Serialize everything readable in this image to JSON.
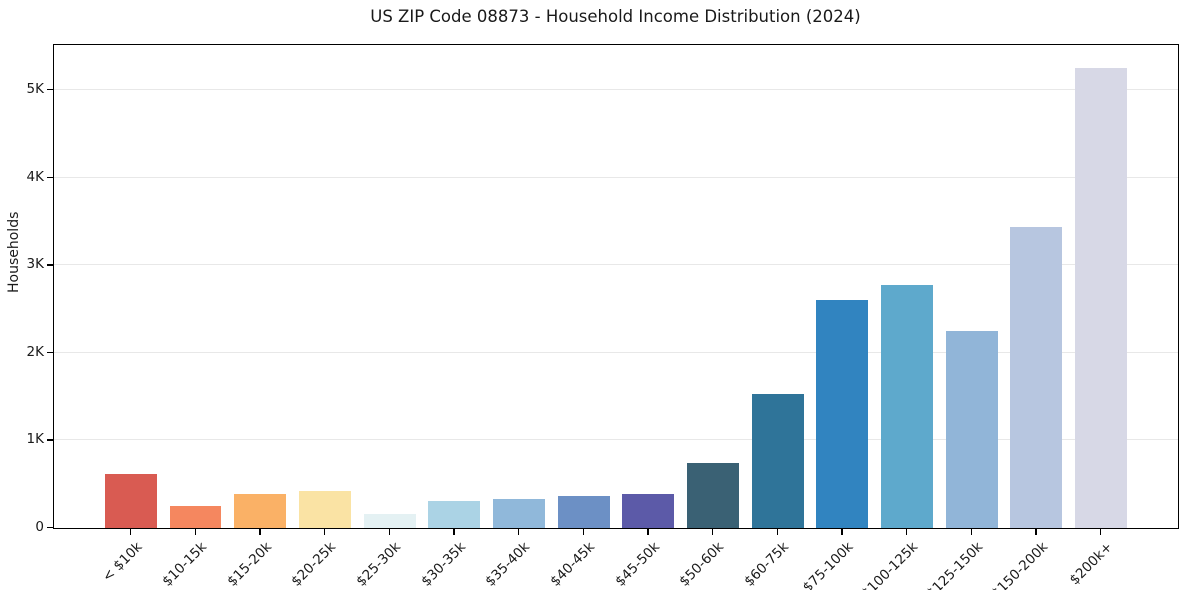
{
  "chart_data": {
    "type": "bar",
    "title": "US ZIP Code 08873 - Household Income Distribution (2024)",
    "xlabel": "",
    "ylabel": "Households",
    "categories": [
      "< $10k",
      "$10-15k",
      "$15-20k",
      "$20-25k",
      "$25-30k",
      "$30-35k",
      "$35-40k",
      "$40-45k",
      "$45-50k",
      "$50-60k",
      "$60-75k",
      "$75-100k",
      "$100-125k",
      "$125-150k",
      "$150-200k",
      "$200k+"
    ],
    "values": [
      620,
      250,
      385,
      425,
      165,
      310,
      335,
      365,
      390,
      745,
      1525,
      2600,
      2770,
      2255,
      3440,
      5250
    ],
    "bar_colors": [
      "#d95b52",
      "#f5875f",
      "#fab166",
      "#fae3a4",
      "#e4f1f3",
      "#abd3e5",
      "#90b8da",
      "#6c90c5",
      "#5c5aa8",
      "#3a6174",
      "#2f7499",
      "#3184c0",
      "#5ea9cc",
      "#91b5d8",
      "#b7c6e0",
      "#d7d8e6"
    ],
    "ylim": [
      0,
      5515
    ],
    "yticks": [
      {
        "value": 0,
        "label": "0"
      },
      {
        "value": 1000,
        "label": "1K"
      },
      {
        "value": 2000,
        "label": "2K"
      },
      {
        "value": 3000,
        "label": "3K"
      },
      {
        "value": 4000,
        "label": "4K"
      },
      {
        "value": 5000,
        "label": "5K"
      }
    ],
    "grid": "horizontal",
    "legend": "none",
    "bar_width_fraction": 0.8
  }
}
